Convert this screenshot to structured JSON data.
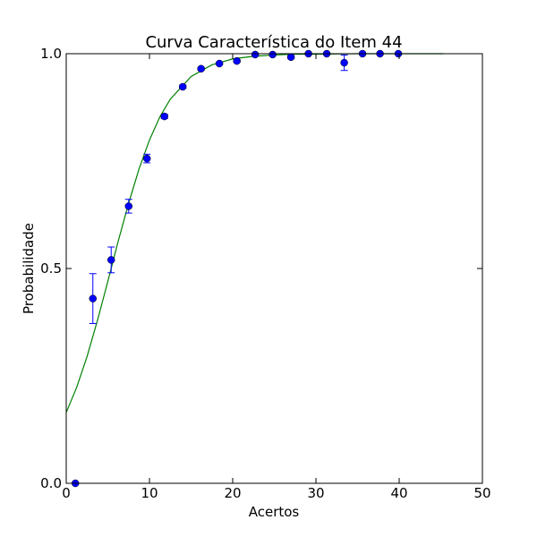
{
  "chart_data": {
    "type": "scatter",
    "title": "Curva Característica do Item 44",
    "x_label": "Acertos",
    "y_label": "Probabilidade",
    "xlim": [
      0,
      50
    ],
    "ylim": [
      0,
      1
    ],
    "xticks": [
      0,
      10,
      20,
      30,
      40,
      50
    ],
    "yticks": [
      {
        "value": 0,
        "label": "0.0"
      },
      0.5,
      {
        "value": 1,
        "label": "1.0"
      }
    ],
    "points": {
      "color": "#0000ff",
      "x": [
        1.1,
        3.2,
        5.4,
        7.5,
        9.7,
        11.8,
        14.0,
        16.2,
        18.4,
        20.5,
        22.7,
        24.8,
        27.0,
        29.1,
        31.3,
        33.4,
        35.6,
        37.7,
        39.9
      ],
      "values": [
        0.0,
        0.43,
        0.52,
        0.645,
        0.756,
        0.854,
        0.923,
        0.965,
        0.977,
        0.983,
        0.998,
        0.998,
        0.992,
        1.0,
        1.0,
        0.979,
        1.0,
        1.0,
        1.0
      ],
      "errors": [
        0,
        0.058,
        0.03,
        0.016,
        0.01,
        0.005,
        0.004,
        0.003,
        0.003,
        0.003,
        0.002,
        0.002,
        0.003,
        0,
        0,
        0.018,
        0,
        0,
        0
      ]
    },
    "curve": {
      "color": "#008000",
      "x": [
        0,
        1.25,
        2.5,
        3.75,
        5,
        6.25,
        7.5,
        8.75,
        10,
        11.25,
        12.5,
        15,
        17.5,
        20,
        22.5,
        25,
        27.5,
        30,
        35,
        40,
        45.3
      ],
      "values": [
        0.165,
        0.223,
        0.295,
        0.379,
        0.47,
        0.564,
        0.652,
        0.732,
        0.799,
        0.853,
        0.894,
        0.947,
        0.974,
        0.988,
        0.994,
        0.997,
        0.999,
        0.999,
        1.0,
        1.0,
        1.0
      ]
    }
  }
}
